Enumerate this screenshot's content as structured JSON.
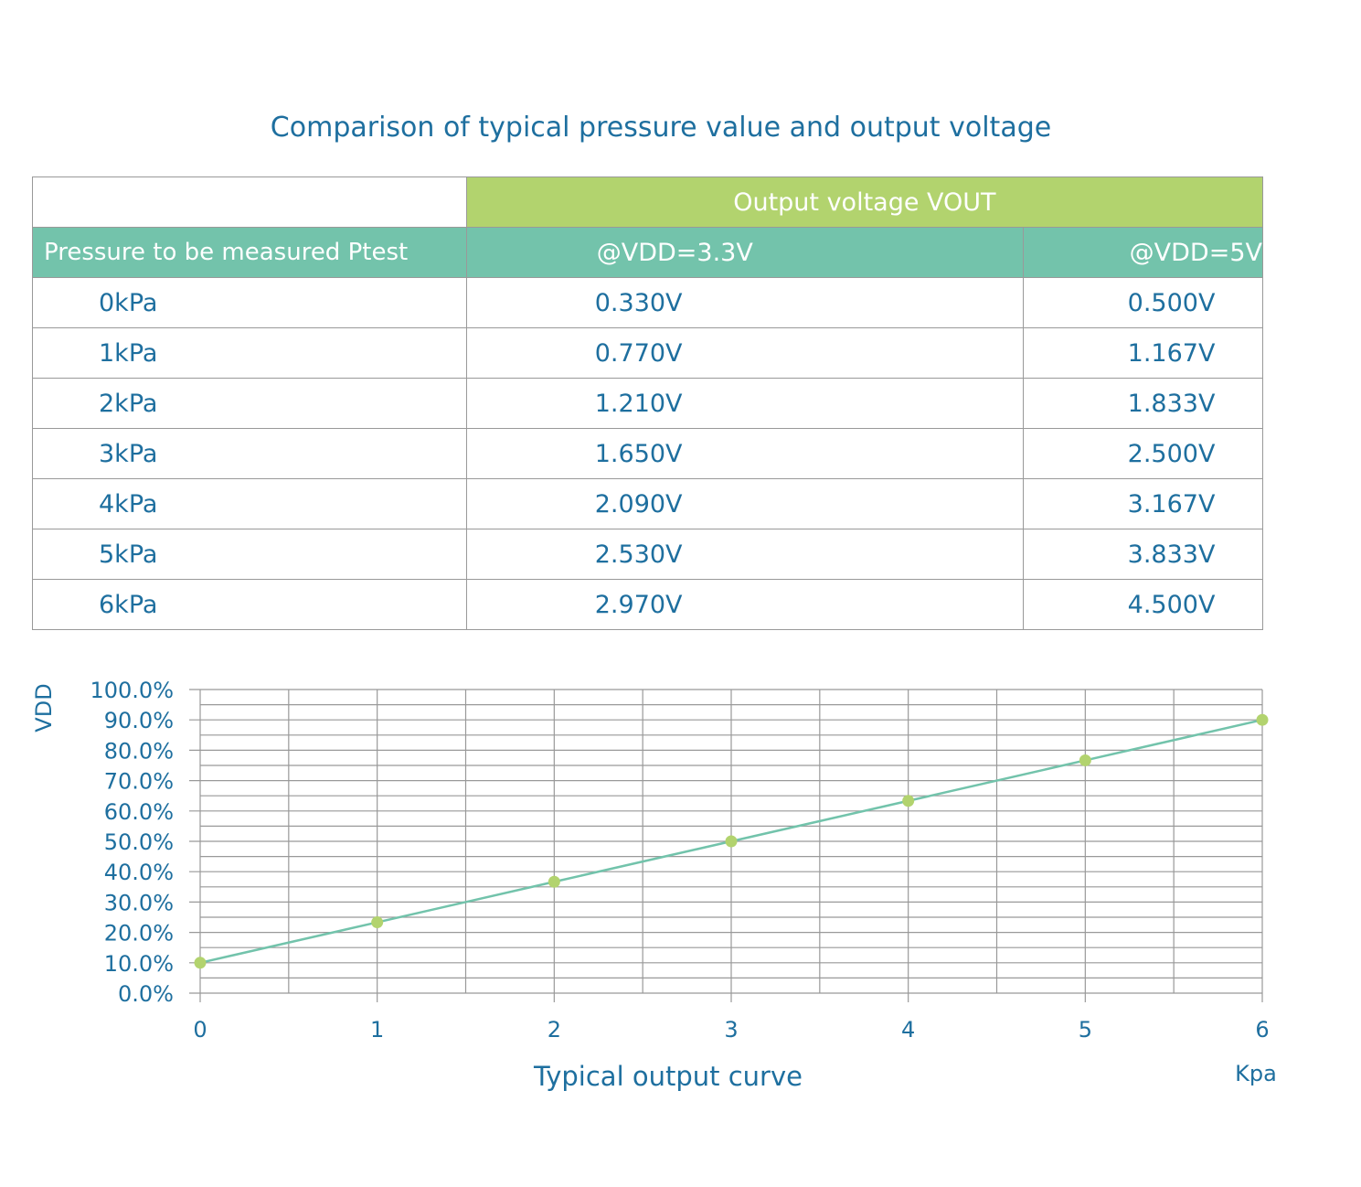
{
  "title": "Comparison of typical pressure value and output voltage",
  "table": {
    "group_header": "Output voltage VOUT",
    "headers": [
      "Pressure to be measured Ptest",
      "@VDD=3.3V",
      "@VDD=5V"
    ],
    "rows": [
      [
        "0kPa",
        "0.330V",
        "0.500V"
      ],
      [
        "1kPa",
        "0.770V",
        "1.167V"
      ],
      [
        "2kPa",
        "1.210V",
        "1.833V"
      ],
      [
        "3kPa",
        "1.650V",
        "2.500V"
      ],
      [
        "4kPa",
        "2.090V",
        "3.167V"
      ],
      [
        "5kPa",
        "2.530V",
        "3.833V"
      ],
      [
        "6kPa",
        "2.970V",
        "4.500V"
      ]
    ]
  },
  "chart_data": {
    "type": "line",
    "title": "Typical output curve",
    "xlabel": "Kpa",
    "ylabel": "VDD",
    "x": [
      0,
      1,
      2,
      3,
      4,
      5,
      6
    ],
    "y": [
      10.0,
      23.33,
      36.67,
      50.0,
      63.33,
      76.67,
      90.0
    ],
    "xlim": [
      0,
      6
    ],
    "ylim": [
      0,
      100
    ],
    "x_ticks": [
      "0",
      "1",
      "2",
      "3",
      "4",
      "5",
      "6"
    ],
    "y_ticks": [
      "0.0%",
      "10.0%",
      "20.0%",
      "30.0%",
      "40.0%",
      "50.0%",
      "60.0%",
      "70.0%",
      "80.0%",
      "90.0%",
      "100.0%"
    ],
    "grid": true,
    "colors": {
      "line": "#72c3ab",
      "marker": "#b2d36e",
      "grid": "#999999",
      "text": "#1e6f9f"
    }
  }
}
